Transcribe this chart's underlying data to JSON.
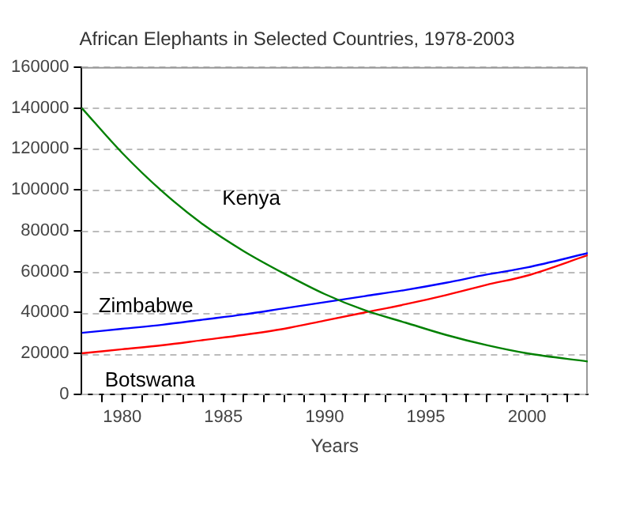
{
  "chart_data": {
    "type": "line",
    "title": "African Elephants in Selected Countries, 1978-2003",
    "xlabel": "Years",
    "xlim": [
      1978,
      2003
    ],
    "xticks": [
      {
        "value": 1979,
        "label": null
      },
      1980,
      {
        "value": 1981,
        "label": null
      },
      {
        "value": 1982,
        "label": null
      },
      {
        "value": 1983,
        "label": null
      },
      {
        "value": 1984,
        "label": null
      },
      1985,
      {
        "value": 1986,
        "label": null
      },
      {
        "value": 1987,
        "label": null
      },
      {
        "value": 1988,
        "label": null
      },
      {
        "value": 1989,
        "label": null
      },
      1990,
      {
        "value": 1991,
        "label": null
      },
      {
        "value": 1992,
        "label": null
      },
      {
        "value": 1993,
        "label": null
      },
      {
        "value": 1994,
        "label": null
      },
      1995,
      {
        "value": 1996,
        "label": null
      },
      {
        "value": 1997,
        "label": null
      },
      {
        "value": 1998,
        "label": null
      },
      {
        "value": 1999,
        "label": null
      },
      2000,
      {
        "value": 2001,
        "label": null
      },
      {
        "value": 2002,
        "label": null
      }
    ],
    "ylim": [
      0,
      160000
    ],
    "yticks": [
      0,
      20000,
      40000,
      60000,
      80000,
      100000,
      120000,
      140000,
      160000
    ],
    "grid": "y",
    "legend": false,
    "marker": "none",
    "line_style": "solid",
    "series": [
      {
        "name": "Kenya",
        "color": "#008000",
        "x": [
          1978,
          1980,
          1982,
          1984,
          1986,
          1988,
          1990,
          1992,
          1994,
          1996,
          1998,
          2000,
          2003
        ],
        "values": [
          140000,
          118000,
          99000,
          83000,
          70000,
          59000,
          49000,
          41000,
          35000,
          29000,
          24000,
          20000,
          16000
        ]
      },
      {
        "name": "Zimbabwe",
        "color": "#0000ff",
        "x": [
          1978,
          1980,
          1982,
          1984,
          1986,
          1988,
          1990,
          1992,
          1994,
          1996,
          1998,
          2000,
          2003
        ],
        "values": [
          30000,
          32000,
          34000,
          36500,
          39000,
          42000,
          45000,
          48000,
          51000,
          54500,
          58500,
          62000,
          69000
        ]
      },
      {
        "name": "Botswana",
        "color": "#ff0000",
        "x": [
          1978,
          1980,
          1982,
          1984,
          1986,
          1988,
          1990,
          1992,
          1994,
          1996,
          1998,
          2000,
          2003
        ],
        "values": [
          20000,
          22000,
          24000,
          26500,
          29000,
          32000,
          36000,
          40000,
          44000,
          48500,
          53500,
          58000,
          68000
        ]
      }
    ]
  }
}
